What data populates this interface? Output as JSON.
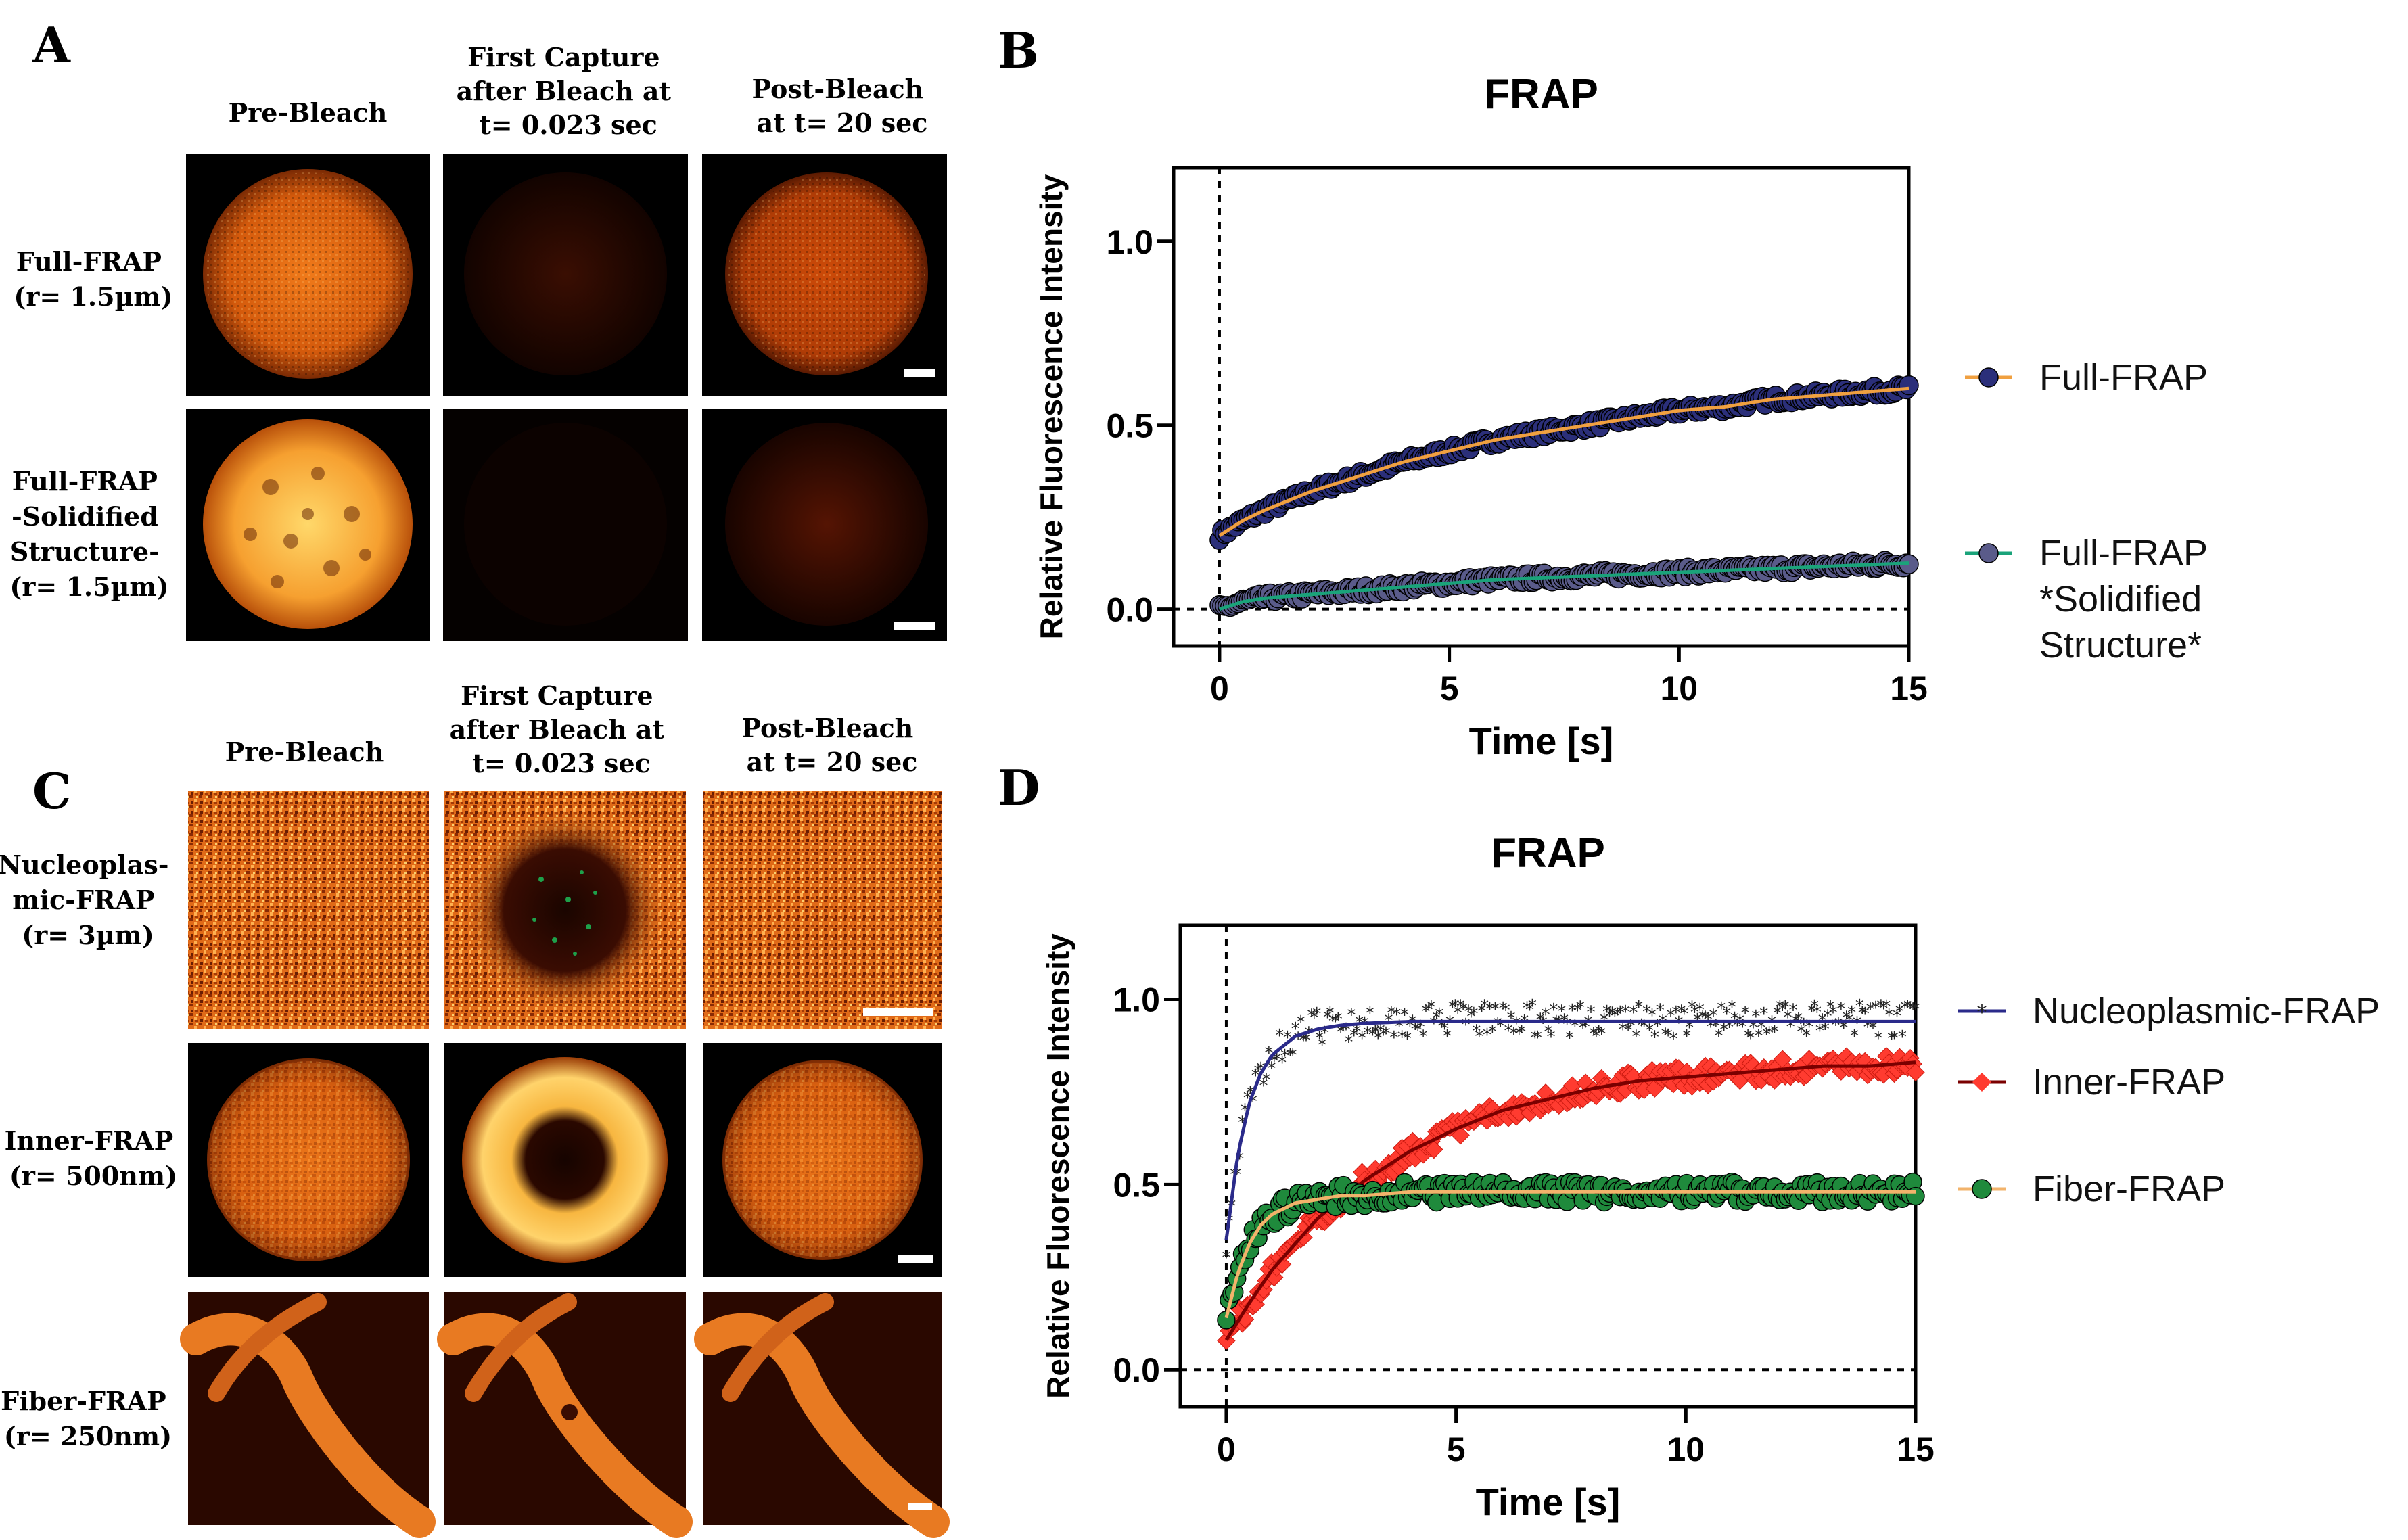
{
  "panels": {
    "A": {
      "letter": "A",
      "column_headers": [
        "Pre-Bleach",
        "First Capture after Bleach at t= 0.023 sec",
        "Post-Bleach at t= 20 sec"
      ],
      "column_header_lines": [
        [
          "Pre-Bleach"
        ],
        [
          "First Capture",
          "after Bleach at",
          "t= 0.023 sec"
        ],
        [
          "Post-Bleach",
          "at t= 20 sec"
        ]
      ],
      "row_labels": [
        "Full-FRAP (r= 1.5µm)",
        "Full-FRAP -Solidified Structure- (r= 1.5µm)"
      ],
      "row_label_lines": [
        [
          "Full-FRAP",
          "(r= 1.5µm)"
        ],
        [
          "Full-FRAP",
          "-Solidified",
          "Structure-",
          "(r= 1.5µm)"
        ]
      ]
    },
    "B": {
      "letter": "B"
    },
    "C": {
      "letter": "C",
      "column_headers": [
        "Pre-Bleach",
        "First Capture after Bleach at t= 0.023 sec",
        "Post-Bleach at t= 20 sec"
      ],
      "column_header_lines": [
        [
          "Pre-Bleach"
        ],
        [
          "First Capture",
          "after Bleach at",
          "t= 0.023 sec"
        ],
        [
          "Post-Bleach",
          "at t= 20 sec"
        ]
      ],
      "row_labels": [
        "Nucleoplasmic-FRAP (r= 3µm)",
        "Inner-FRAP (r= 500nm)",
        "Fiber-FRAP (r= 250nm)"
      ],
      "row_label_lines": [
        [
          "Nucleoplas-",
          "mic-FRAP",
          "(r= 3µm)"
        ],
        [
          "Inner-FRAP",
          "(r= 500nm)"
        ],
        [
          "Fiber-FRAP",
          "(r= 250nm)"
        ]
      ]
    },
    "D": {
      "letter": "D"
    }
  },
  "colors": {
    "navy_marker": "#2b2f7a",
    "purple_marker": "#5a5b8a",
    "orange_fit": "#f0a040",
    "green_fit": "#1aa37a",
    "black_marker": "#222222",
    "red_marker": "#ff3b30",
    "dark_red_fit": "#7a0000",
    "green_marker": "#1f8a3c",
    "blue_fit": "#2a2a8a",
    "tan_fit": "#f2b36b"
  },
  "chart_data": [
    {
      "panel": "B",
      "type": "scatter",
      "title": "FRAP",
      "xlabel": "Time [s]",
      "ylabel": "Relative Fluorescence Intensity",
      "xlim": [
        -1,
        15
      ],
      "ylim": [
        -0.1,
        1.2
      ],
      "xticks": [
        0,
        5,
        10,
        15
      ],
      "xtick_labels": [
        "0",
        "5",
        "10",
        "15"
      ],
      "yticks": [
        0.0,
        0.5,
        1.0
      ],
      "ytick_labels": [
        "0.0",
        "0.5",
        "1.0"
      ],
      "reference_lines": {
        "x": 0,
        "y": 0
      },
      "legend_position": "right",
      "series": [
        {
          "name": "Full-FRAP",
          "legend_lines": [
            "Full-FRAP"
          ],
          "marker_color": "#2b2f7a",
          "fit_color": "#f0a040",
          "x": [
            0,
            0.5,
            1,
            2,
            3,
            4,
            5,
            6,
            7,
            8,
            9,
            10,
            11,
            12,
            13,
            14,
            15
          ],
          "fit": [
            0.2,
            0.24,
            0.27,
            0.32,
            0.36,
            0.4,
            0.43,
            0.46,
            0.48,
            0.5,
            0.52,
            0.54,
            0.55,
            0.57,
            0.58,
            0.59,
            0.6
          ]
        },
        {
          "name": "Full-FRAP *Solidified Structure*",
          "legend_lines": [
            "Full-FRAP",
            "*Solidified",
            "Structure*"
          ],
          "marker_color": "#5a5b8a",
          "fit_color": "#1aa37a",
          "x": [
            0,
            0.5,
            1,
            2,
            3,
            4,
            5,
            6,
            7,
            8,
            9,
            10,
            11,
            12,
            13,
            14,
            15
          ],
          "fit": [
            0.0,
            0.02,
            0.03,
            0.04,
            0.05,
            0.06,
            0.07,
            0.08,
            0.085,
            0.09,
            0.095,
            0.1,
            0.105,
            0.11,
            0.115,
            0.12,
            0.125
          ]
        }
      ]
    },
    {
      "panel": "D",
      "type": "scatter",
      "title": "FRAP",
      "xlabel": "Time [s]",
      "ylabel": "Relative Fluorescence Intensity",
      "xlim": [
        -1,
        15
      ],
      "ylim": [
        -0.1,
        1.2
      ],
      "xticks": [
        0,
        5,
        10,
        15
      ],
      "xtick_labels": [
        "0",
        "5",
        "10",
        "15"
      ],
      "yticks": [
        0.0,
        0.5,
        1.0
      ],
      "ytick_labels": [
        "0.0",
        "0.5",
        "1.0"
      ],
      "reference_lines": {
        "x": 0,
        "y": 0
      },
      "legend_position": "right",
      "series": [
        {
          "name": "Nucleoplasmic-FRAP",
          "legend_lines": [
            "Nucleoplasmic-FRAP"
          ],
          "marker_color": "#222222",
          "fit_color": "#2a2a8a",
          "x": [
            0,
            0.25,
            0.5,
            0.75,
            1,
            1.5,
            2,
            2.5,
            3,
            4,
            5,
            6,
            8,
            10,
            12,
            15
          ],
          "fit": [
            0.35,
            0.58,
            0.72,
            0.8,
            0.85,
            0.9,
            0.92,
            0.93,
            0.935,
            0.94,
            0.94,
            0.94,
            0.94,
            0.94,
            0.94,
            0.94
          ]
        },
        {
          "name": "Inner-FRAP",
          "legend_lines": [
            "Inner-FRAP"
          ],
          "marker_color": "#ff3b30",
          "fit_color": "#7a0000",
          "x": [
            0,
            0.5,
            1,
            1.5,
            2,
            3,
            4,
            5,
            6,
            7,
            8,
            9,
            10,
            11,
            12,
            13,
            14,
            15
          ],
          "fit": [
            0.08,
            0.18,
            0.27,
            0.34,
            0.41,
            0.51,
            0.59,
            0.65,
            0.7,
            0.73,
            0.76,
            0.78,
            0.79,
            0.8,
            0.81,
            0.82,
            0.82,
            0.83
          ]
        },
        {
          "name": "Fiber-FRAP",
          "legend_lines": [
            "Fiber-FRAP"
          ],
          "marker_color": "#1f8a3c",
          "fit_color": "#f2b36b",
          "x": [
            0,
            0.25,
            0.5,
            0.75,
            1,
            1.5,
            2,
            2.5,
            3,
            4,
            5,
            7,
            10,
            12,
            15
          ],
          "fit": [
            0.14,
            0.26,
            0.34,
            0.39,
            0.42,
            0.45,
            0.46,
            0.47,
            0.47,
            0.48,
            0.48,
            0.48,
            0.48,
            0.48,
            0.48
          ]
        }
      ]
    }
  ]
}
